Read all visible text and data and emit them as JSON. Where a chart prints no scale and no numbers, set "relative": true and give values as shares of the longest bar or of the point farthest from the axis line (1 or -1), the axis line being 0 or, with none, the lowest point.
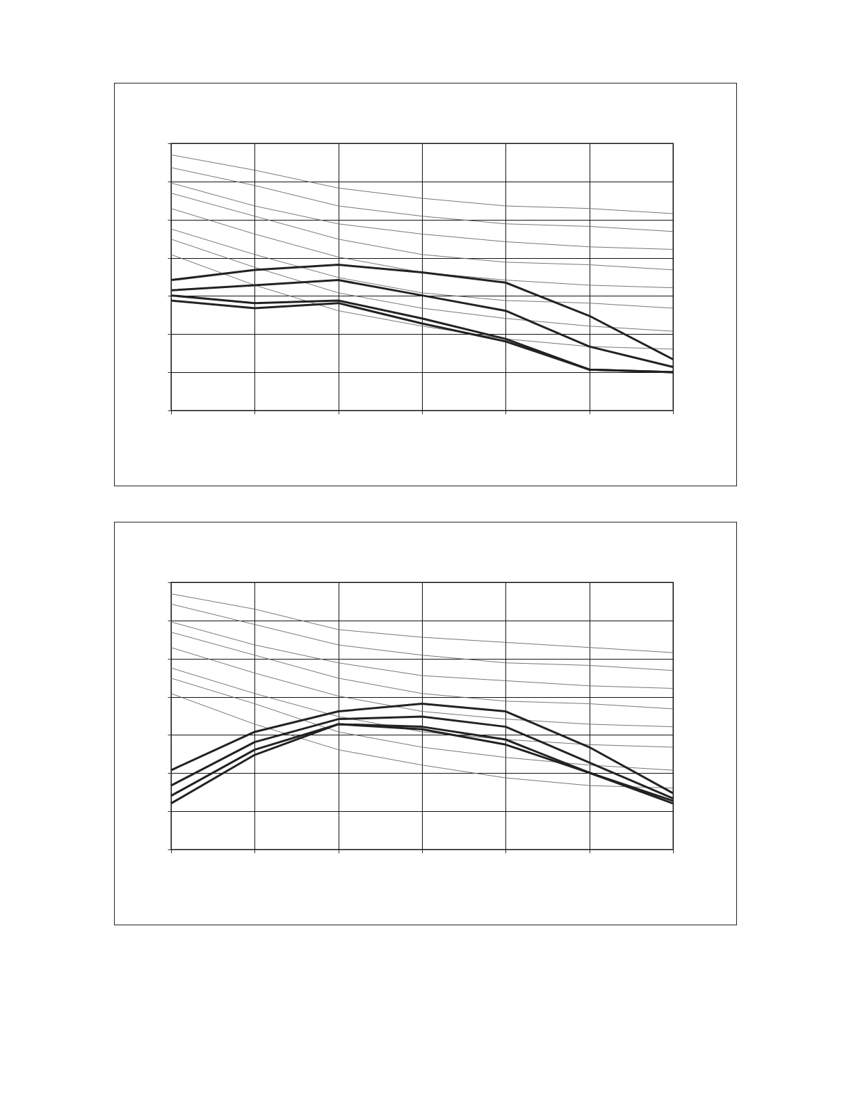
{
  "chart_data": [
    {
      "type": "line",
      "relative": true,
      "grid": true,
      "legend": false,
      "categories": [
        null,
        null,
        null,
        null,
        null,
        null,
        null
      ],
      "series": [
        {
          "color": "#666666",
          "values": [
            1,
            0.94,
            0.87,
            0.83,
            0.8,
            0.79,
            0.77
          ]
        },
        {
          "color": "#666666",
          "values": [
            0.95,
            0.88,
            0.8,
            0.76,
            0.73,
            0.72,
            0.7
          ]
        },
        {
          "color": "#666666",
          "values": [
            0.89,
            0.8,
            0.73,
            0.69,
            0.66,
            0.64,
            0.63
          ]
        },
        {
          "color": "#666666",
          "values": [
            0.85,
            0.76,
            0.67,
            0.61,
            0.58,
            0.57,
            0.55
          ]
        },
        {
          "color": "#666666",
          "values": [
            0.79,
            0.69,
            0.6,
            0.54,
            0.51,
            0.49,
            0.48
          ]
        },
        {
          "color": "#666666",
          "values": [
            0.71,
            0.61,
            0.52,
            0.46,
            0.43,
            0.42,
            0.4
          ]
        },
        {
          "color": "#666666",
          "values": [
            0.67,
            0.56,
            0.46,
            0.4,
            0.36,
            0.33,
            0.31
          ]
        },
        {
          "color": "#666666",
          "values": [
            0.61,
            0.49,
            0.39,
            0.33,
            0.28,
            0.25,
            0.24
          ]
        },
        {
          "color": "#222222",
          "values": [
            0.51,
            0.55,
            0.57,
            0.54,
            0.5,
            0.37,
            0.2
          ]
        },
        {
          "color": "#222222",
          "values": [
            0.47,
            0.49,
            0.51,
            0.45,
            0.39,
            0.25,
            0.17
          ]
        },
        {
          "color": "#222222",
          "values": [
            0.45,
            0.42,
            0.43,
            0.36,
            0.28,
            0.16,
            0.15
          ]
        },
        {
          "color": "#222222",
          "values": [
            0.43,
            0.4,
            0.42,
            0.34,
            0.27,
            0.16,
            0.15
          ]
        }
      ]
    },
    {
      "type": "line",
      "relative": true,
      "grid": true,
      "legend": false,
      "categories": [
        null,
        null,
        null,
        null,
        null,
        null,
        null
      ],
      "series": [
        {
          "color": "#666666",
          "values": [
            1,
            0.94,
            0.86,
            0.83,
            0.81,
            0.79,
            0.77
          ]
        },
        {
          "color": "#666666",
          "values": [
            0.96,
            0.88,
            0.8,
            0.76,
            0.73,
            0.72,
            0.7
          ]
        },
        {
          "color": "#666666",
          "values": [
            0.89,
            0.8,
            0.73,
            0.68,
            0.66,
            0.64,
            0.63
          ]
        },
        {
          "color": "#666666",
          "values": [
            0.85,
            0.76,
            0.67,
            0.61,
            0.58,
            0.57,
            0.55
          ]
        },
        {
          "color": "#666666",
          "values": [
            0.79,
            0.69,
            0.6,
            0.54,
            0.51,
            0.49,
            0.48
          ]
        },
        {
          "color": "#666666",
          "values": [
            0.71,
            0.61,
            0.52,
            0.46,
            0.43,
            0.41,
            0.4
          ]
        },
        {
          "color": "#666666",
          "values": [
            0.67,
            0.57,
            0.46,
            0.4,
            0.36,
            0.33,
            0.31
          ]
        },
        {
          "color": "#666666",
          "values": [
            0.61,
            0.49,
            0.39,
            0.33,
            0.28,
            0.25,
            0.24
          ]
        },
        {
          "color": "#222222",
          "values": [
            0.31,
            0.46,
            0.54,
            0.57,
            0.54,
            0.4,
            0.22
          ]
        },
        {
          "color": "#222222",
          "values": [
            0.25,
            0.42,
            0.51,
            0.52,
            0.48,
            0.34,
            0.2
          ]
        },
        {
          "color": "#222222",
          "values": [
            0.21,
            0.39,
            0.49,
            0.48,
            0.43,
            0.3,
            0.19
          ]
        },
        {
          "color": "#222222",
          "values": [
            0.18,
            0.37,
            0.49,
            0.47,
            0.41,
            0.3,
            0.18
          ]
        }
      ]
    }
  ]
}
